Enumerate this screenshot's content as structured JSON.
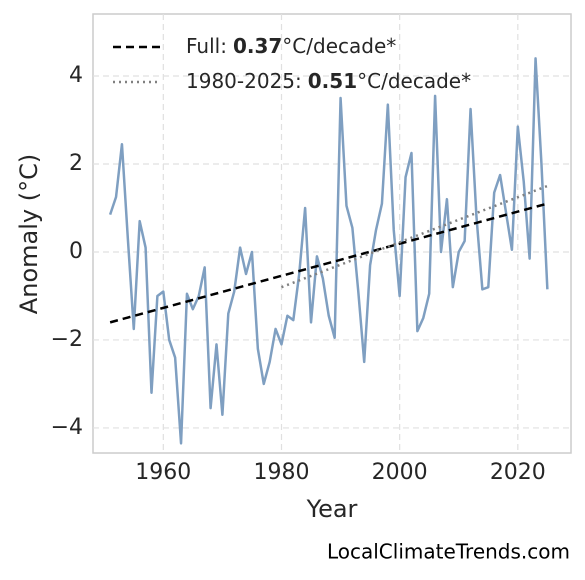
{
  "chart_data": {
    "type": "line",
    "xlabel": "Year",
    "ylabel": "Anomaly (°C)",
    "footer": "LocalClimateTrends.com",
    "x": [
      1951,
      1952,
      1953,
      1954,
      1955,
      1956,
      1957,
      1958,
      1959,
      1960,
      1961,
      1962,
      1963,
      1964,
      1965,
      1966,
      1967,
      1968,
      1969,
      1970,
      1971,
      1972,
      1973,
      1974,
      1975,
      1976,
      1977,
      1978,
      1979,
      1980,
      1981,
      1982,
      1983,
      1984,
      1985,
      1986,
      1987,
      1988,
      1989,
      1990,
      1991,
      1992,
      1993,
      1994,
      1995,
      1996,
      1997,
      1998,
      1999,
      2000,
      2001,
      2002,
      2003,
      2004,
      2005,
      2006,
      2007,
      2008,
      2009,
      2010,
      2011,
      2012,
      2013,
      2014,
      2015,
      2016,
      2017,
      2018,
      2019,
      2020,
      2021,
      2022,
      2023,
      2024,
      2025
    ],
    "values": [
      0.85,
      1.25,
      2.45,
      0.3,
      -1.75,
      0.7,
      0.1,
      -3.2,
      -1.0,
      -0.9,
      -2.0,
      -2.4,
      -4.35,
      -0.95,
      -1.3,
      -1.0,
      -0.35,
      -3.55,
      -2.1,
      -3.7,
      -1.4,
      -0.9,
      0.1,
      -0.5,
      0.0,
      -2.2,
      -3.0,
      -2.5,
      -1.75,
      -2.1,
      -1.45,
      -1.55,
      -0.5,
      1.0,
      -1.6,
      -0.1,
      -0.6,
      -1.45,
      -1.95,
      3.5,
      1.05,
      0.55,
      -0.9,
      -2.5,
      -0.3,
      0.5,
      1.1,
      3.35,
      0.5,
      -1.0,
      1.7,
      2.25,
      -1.8,
      -1.5,
      -0.95,
      3.55,
      0.0,
      1.2,
      -0.8,
      0.0,
      0.25,
      3.25,
      0.8,
      -0.85,
      -0.8,
      1.35,
      1.75,
      0.9,
      0.05,
      2.85,
      1.6,
      -0.15,
      4.4,
      2.0,
      -0.85
    ],
    "color": "#7f9fc1",
    "trends": [
      {
        "label": "Full:",
        "rate": 0.37,
        "unit": "°C/decade*",
        "x": [
          1951,
          2025
        ],
        "values": [
          -1.6,
          1.1
        ],
        "color": "#000000",
        "dash": "8,5"
      },
      {
        "label": "1980-2025:",
        "rate": 0.51,
        "unit": "°C/decade*",
        "x": [
          1980,
          2025
        ],
        "values": [
          -0.8,
          1.5
        ],
        "color": "#808080",
        "dash": "2,4"
      }
    ],
    "xlim": [
      1948.1,
      2029.0
    ],
    "ylim": [
      -4.57,
      5.41
    ],
    "xticks": [
      1960,
      1980,
      2000,
      2020
    ],
    "yticks": [
      {
        "value": -4,
        "label": "−4"
      },
      {
        "value": -2,
        "label": "−2"
      },
      0,
      2,
      4
    ],
    "grid": true
  }
}
